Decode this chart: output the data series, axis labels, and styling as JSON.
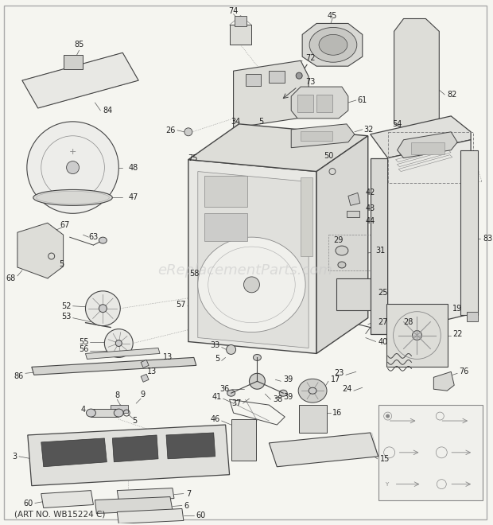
{
  "bg_color": "#f5f5f0",
  "border_color": "#888888",
  "line_color": "#444444",
  "label_color": "#222222",
  "watermark": "eReplacementParts.com",
  "watermark_color": "#c8c8c8",
  "subtitle": "(ART NO. WB15224 C)",
  "lw": 0.7,
  "fs": 7.0
}
